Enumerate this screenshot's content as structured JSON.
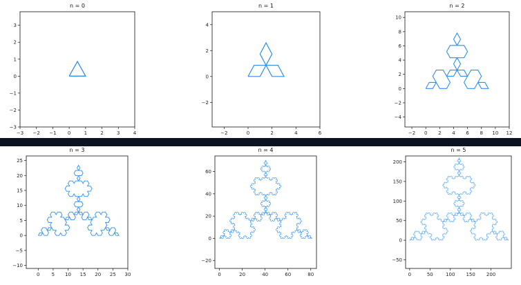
{
  "chart_data": [
    {
      "type": "line",
      "title": "n = 0",
      "iterations": 0,
      "xlim": [
        -3,
        4
      ],
      "ylim": [
        -3,
        3.8
      ],
      "xticks": [
        -3,
        -2,
        -1,
        0,
        1,
        2,
        3,
        4
      ],
      "yticks": [
        -3,
        -2,
        -1,
        0,
        1,
        2,
        3
      ],
      "series": [
        {
          "side_length": 1,
          "color": "#2e8ff0"
        }
      ]
    },
    {
      "type": "line",
      "title": "n = 1",
      "iterations": 1,
      "xlim": [
        -3,
        6
      ],
      "ylim": [
        -3.9,
        5.0
      ],
      "xticks": [
        -2,
        0,
        2,
        4,
        6
      ],
      "yticks": [
        -2,
        0,
        2,
        4
      ],
      "series": [
        {
          "side_length": 3,
          "color": "#2e8ff0"
        }
      ]
    },
    {
      "type": "line",
      "title": "n = 2",
      "iterations": 2,
      "xlim": [
        -3,
        12
      ],
      "ylim": [
        -5.4,
        10.8
      ],
      "xticks": [
        -2,
        0,
        2,
        4,
        6,
        8,
        10,
        12
      ],
      "yticks": [
        -4,
        -2,
        0,
        2,
        4,
        6,
        8,
        10
      ],
      "series": [
        {
          "side_length": 9,
          "color": "#2e8ff0"
        }
      ]
    },
    {
      "type": "line",
      "title": "n = 3",
      "iterations": 3,
      "xlim": [
        -4,
        30
      ],
      "ylim": [
        -11,
        26.5
      ],
      "xticks": [
        0,
        5,
        10,
        15,
        20,
        25,
        30
      ],
      "yticks": [
        -10,
        -5,
        0,
        5,
        10,
        15,
        20,
        25
      ],
      "series": [
        {
          "side_length": 27,
          "color": "#2e8ff0"
        }
      ]
    },
    {
      "type": "line",
      "title": "n = 4",
      "iterations": 4,
      "xlim": [
        -4,
        85
      ],
      "ylim": [
        -27,
        74
      ],
      "xticks": [
        0,
        20,
        40,
        60,
        80
      ],
      "yticks": [
        -20,
        0,
        20,
        40,
        60
      ],
      "series": [
        {
          "side_length": 81,
          "color": "#2e8ff0"
        }
      ]
    },
    {
      "type": "line",
      "title": "n = 5",
      "iterations": 5,
      "xlim": [
        -10,
        250
      ],
      "ylim": [
        -72,
        215
      ],
      "xticks": [
        0,
        50,
        100,
        150,
        200
      ],
      "yticks": [
        -50,
        0,
        50,
        100,
        150,
        200
      ],
      "series": [
        {
          "side_length": 243,
          "color": "#2e8ff0"
        }
      ]
    }
  ],
  "divider_color": "#0b1320"
}
